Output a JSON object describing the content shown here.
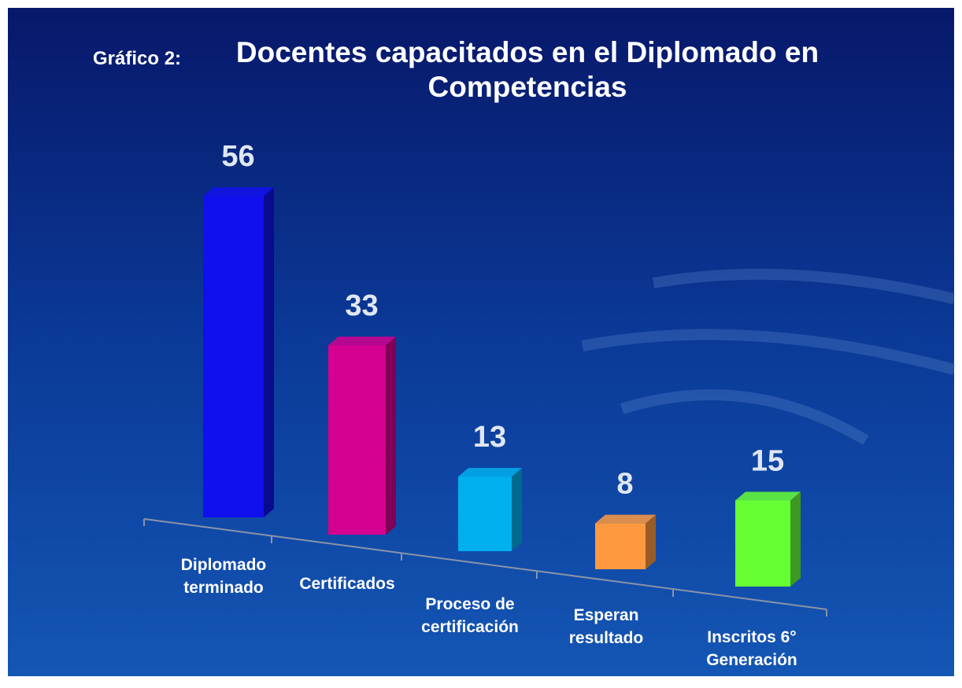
{
  "chart_data": {
    "type": "bar3d",
    "figure_label": "Gráfico 2:",
    "title": "Docentes capacitados en el Diplomado en Competencias",
    "categories": [
      "Diplomado terminado",
      "Certificados",
      "Proceso de certificación",
      "Esperan resultado",
      "Inscritos 6° Generación"
    ],
    "values": [
      56,
      33,
      13,
      8,
      15
    ],
    "colors": [
      "#1010ee",
      "#d4008f",
      "#00b0ee",
      "#ff9940",
      "#66ff33"
    ]
  }
}
